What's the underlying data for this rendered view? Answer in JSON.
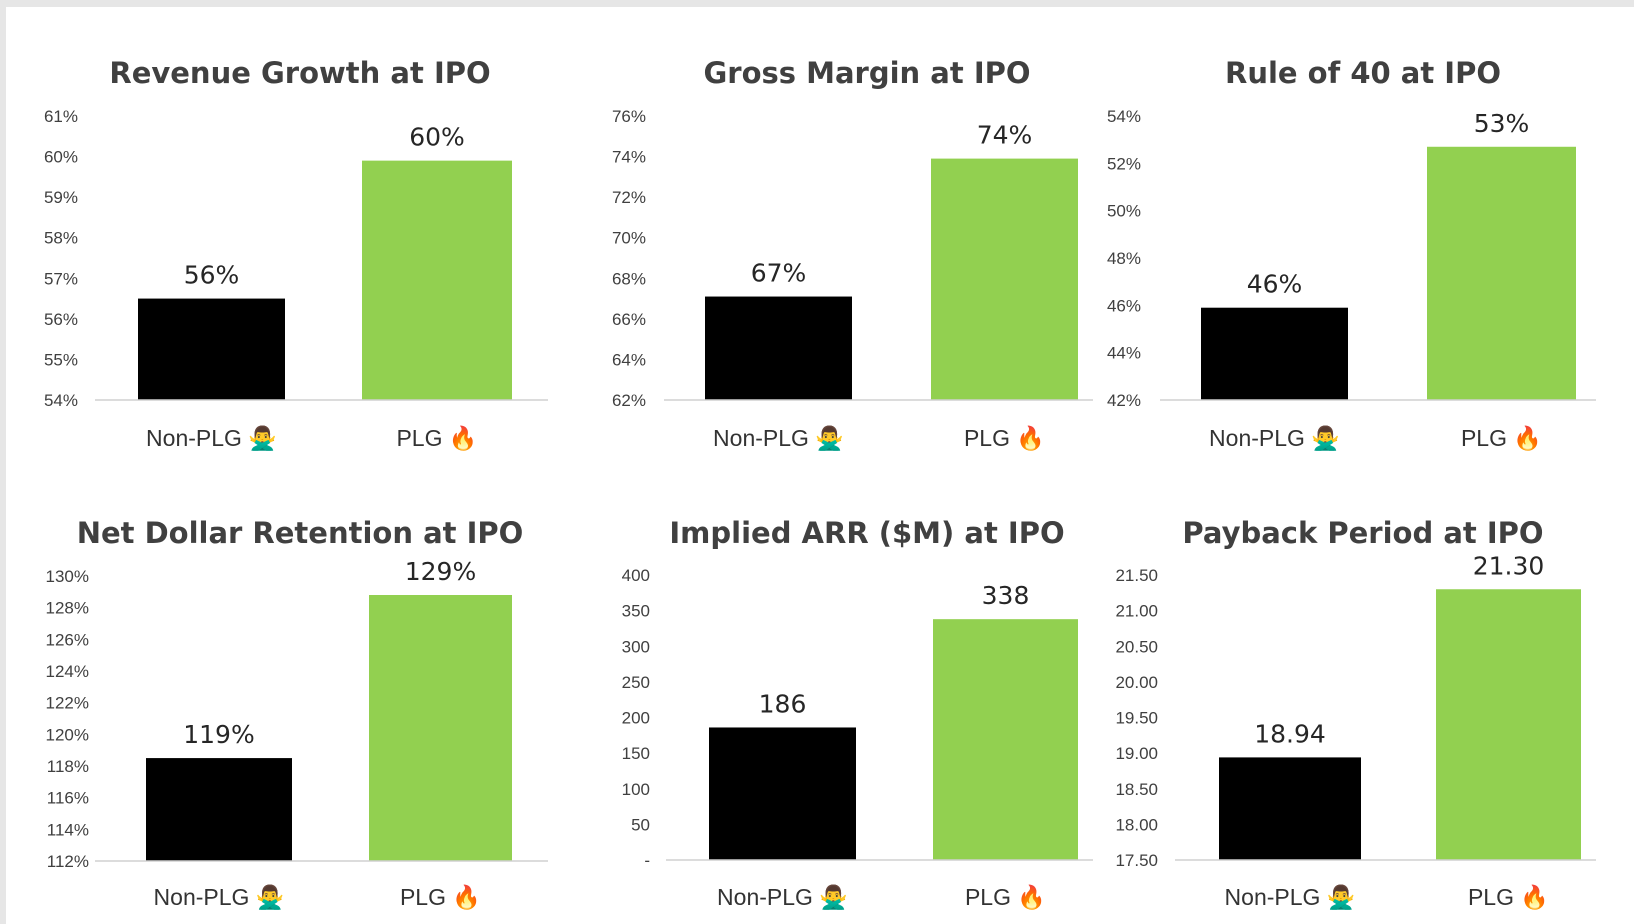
{
  "colors": {
    "non_plg": "#000000",
    "plg": "#92d050"
  },
  "category_icons": {
    "Non-PLG": "person-gesturing-no-icon",
    "PLG": "fire-icon"
  },
  "chart_data": [
    {
      "type": "bar",
      "title": "Revenue Growth at IPO",
      "categories": [
        "Non-PLG",
        "PLG"
      ],
      "category_emojis": [
        "🙅‍♂️",
        "🔥"
      ],
      "values": [
        56.5,
        59.9
      ],
      "data_labels": [
        "56%",
        "60%"
      ],
      "ylim": [
        54,
        61
      ],
      "yticks": [
        "54%",
        "55%",
        "56%",
        "57%",
        "58%",
        "59%",
        "60%",
        "61%"
      ],
      "xlabel": "",
      "ylabel": ""
    },
    {
      "type": "bar",
      "title": "Gross Margin at IPO",
      "categories": [
        "Non-PLG",
        "PLG"
      ],
      "category_emojis": [
        "🙅‍♂️",
        "🔥"
      ],
      "values": [
        67.1,
        73.9
      ],
      "data_labels": [
        "67%",
        "74%"
      ],
      "ylim": [
        62,
        76
      ],
      "yticks": [
        "62%",
        "64%",
        "66%",
        "68%",
        "70%",
        "72%",
        "74%",
        "76%"
      ],
      "xlabel": "",
      "ylabel": ""
    },
    {
      "type": "bar",
      "title": "Rule of 40 at IPO",
      "categories": [
        "Non-PLG",
        "PLG"
      ],
      "category_emojis": [
        "🙅‍♂️",
        "🔥"
      ],
      "values": [
        45.9,
        52.7
      ],
      "data_labels": [
        "46%",
        "53%"
      ],
      "ylim": [
        42,
        54
      ],
      "yticks": [
        "42%",
        "44%",
        "46%",
        "48%",
        "50%",
        "52%",
        "54%"
      ],
      "xlabel": "",
      "ylabel": ""
    },
    {
      "type": "bar",
      "title": "Net Dollar Retention at IPO",
      "categories": [
        "Non-PLG",
        "PLG"
      ],
      "category_emojis": [
        "🙅‍♂️",
        "🔥"
      ],
      "values": [
        118.5,
        128.8
      ],
      "data_labels": [
        "119%",
        "129%"
      ],
      "ylim": [
        112,
        130
      ],
      "yticks": [
        "112%",
        "114%",
        "116%",
        "118%",
        "120%",
        "122%",
        "124%",
        "126%",
        "128%",
        "130%"
      ],
      "xlabel": "",
      "ylabel": ""
    },
    {
      "type": "bar",
      "title": "Implied ARR ($M) at IPO",
      "categories": [
        "Non-PLG",
        "PLG"
      ],
      "category_emojis": [
        "🙅‍♂️",
        "🔥"
      ],
      "values": [
        186,
        338
      ],
      "data_labels": [
        "186",
        "338"
      ],
      "ylim": [
        0,
        400
      ],
      "yticks": [
        "-",
        "50",
        "100",
        "150",
        "200",
        "250",
        "300",
        "350",
        "400"
      ],
      "xlabel": "",
      "ylabel": ""
    },
    {
      "type": "bar",
      "title": "Payback Period at IPO",
      "categories": [
        "Non-PLG",
        "PLG"
      ],
      "category_emojis": [
        "🙅‍♂️",
        "🔥"
      ],
      "values": [
        18.94,
        21.3
      ],
      "data_labels": [
        "18.94",
        "21.30"
      ],
      "ylim": [
        17.5,
        21.5
      ],
      "yticks": [
        "17.50",
        "18.00",
        "18.50",
        "19.00",
        "19.50",
        "20.00",
        "20.50",
        "21.00",
        "21.50"
      ],
      "xlabel": "",
      "ylabel": ""
    }
  ]
}
